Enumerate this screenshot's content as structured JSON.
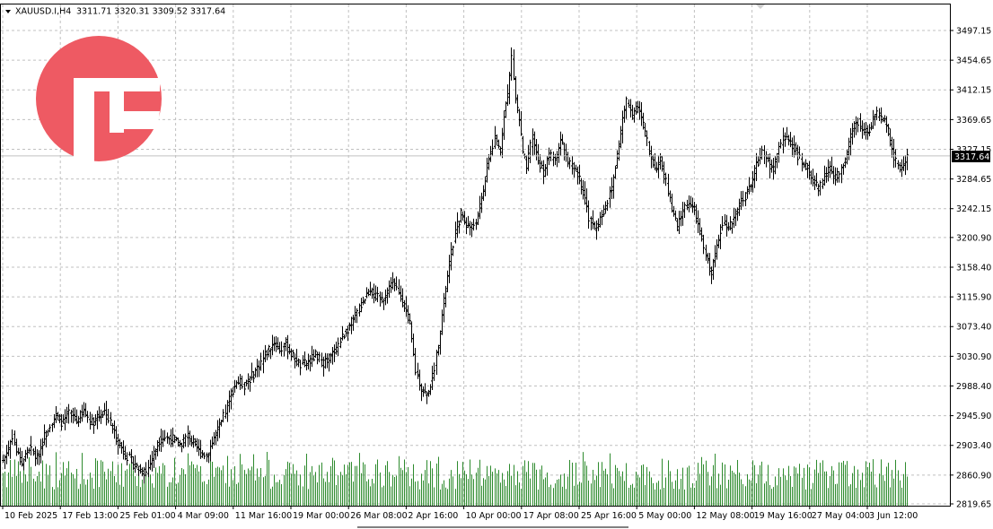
{
  "header": {
    "symbol": "XAUUSD.I,H4",
    "ohlc": "3311.71 3320.31 3309.52 3317.64"
  },
  "current_price_label": "3317.64",
  "logo": {
    "name": "broker-logo",
    "color": "#ee5a63"
  },
  "colors": {
    "bars": "#000000",
    "volume": "#2e8b2e",
    "grid": "#c0c0c0",
    "price_line": "#c0c0c0",
    "price_box": "#000000"
  },
  "chart_data": {
    "type": "bar",
    "title": "XAUUSD.I,H4",
    "xlabel": "",
    "ylabel": "",
    "ylim": [
      2819.65,
      3497.15
    ],
    "y_ticks": [
      "3497.15",
      "3454.65",
      "3412.15",
      "3369.65",
      "3327.15",
      "3284.65",
      "3242.15",
      "3200.90",
      "3158.40",
      "3115.90",
      "3073.40",
      "3030.90",
      "2988.40",
      "2945.90",
      "2903.40",
      "2860.90",
      "2819.65"
    ],
    "x_ticks": [
      "10 Feb 2025",
      "17 Feb 13:00",
      "25 Feb 01:00",
      "4 Mar 09:00",
      "11 Mar 16:00",
      "19 Mar 00:00",
      "26 Mar 08:00",
      "2 Apr 16:00",
      "10 Apr 00:00",
      "17 Apr 08:00",
      "25 Apr 16:00",
      "5 May 00:00",
      "12 May 08:00",
      "19 May 16:00",
      "27 May 04:00",
      "3 Jun 12:00"
    ],
    "grid": true,
    "current_price": 3317.64,
    "series": [
      {
        "name": "XAUUSD.I,H4",
        "kind": "ohlc_close_path",
        "points": [
          [
            0,
            2882
          ],
          [
            3,
            2900
          ],
          [
            5,
            2918
          ],
          [
            7,
            2895
          ],
          [
            10,
            2878
          ],
          [
            14,
            2900
          ],
          [
            18,
            2885
          ],
          [
            21,
            2910
          ],
          [
            25,
            2935
          ],
          [
            28,
            2945
          ],
          [
            32,
            2935
          ],
          [
            35,
            2950
          ],
          [
            39,
            2938
          ],
          [
            43,
            2952
          ],
          [
            47,
            2936
          ],
          [
            50,
            2944
          ],
          [
            54,
            2952
          ],
          [
            57,
            2935
          ],
          [
            60,
            2915
          ],
          [
            64,
            2895
          ],
          [
            68,
            2880
          ],
          [
            72,
            2870
          ],
          [
            76,
            2865
          ],
          [
            80,
            2892
          ],
          [
            83,
            2912
          ],
          [
            86,
            2915
          ],
          [
            90,
            2912
          ],
          [
            94,
            2905
          ],
          [
            98,
            2917
          ],
          [
            101,
            2906
          ],
          [
            104,
            2895
          ],
          [
            108,
            2890
          ],
          [
            112,
            2914
          ],
          [
            116,
            2935
          ],
          [
            118,
            2952
          ],
          [
            121,
            2978
          ],
          [
            124,
            2995
          ],
          [
            128,
            2990
          ],
          [
            132,
            3002
          ],
          [
            136,
            3018
          ],
          [
            140,
            3038
          ],
          [
            144,
            3052
          ],
          [
            147,
            3040
          ],
          [
            150,
            3048
          ],
          [
            154,
            3030
          ],
          [
            158,
            3018
          ],
          [
            162,
            3022
          ],
          [
            166,
            3032
          ],
          [
            170,
            3022
          ],
          [
            174,
            3030
          ],
          [
            178,
            3048
          ],
          [
            182,
            3068
          ],
          [
            186,
            3082
          ],
          [
            189,
            3100
          ],
          [
            192,
            3115
          ],
          [
            195,
            3128
          ],
          [
            198,
            3115
          ],
          [
            201,
            3112
          ],
          [
            204,
            3125
          ],
          [
            207,
            3138
          ],
          [
            210,
            3120
          ],
          [
            213,
            3105
          ],
          [
            216,
            3075
          ],
          [
            219,
            3010
          ],
          [
            222,
            2985
          ],
          [
            225,
            2975
          ],
          [
            228,
            3000
          ],
          [
            231,
            3050
          ],
          [
            234,
            3108
          ],
          [
            237,
            3162
          ],
          [
            240,
            3208
          ],
          [
            243,
            3235
          ],
          [
            246,
            3220
          ],
          [
            249,
            3215
          ],
          [
            252,
            3230
          ],
          [
            255,
            3270
          ],
          [
            258,
            3315
          ],
          [
            261,
            3340
          ],
          [
            264,
            3325
          ],
          [
            266,
            3380
          ],
          [
            268,
            3405
          ],
          [
            270,
            3460
          ],
          [
            272,
            3400
          ],
          [
            274,
            3370
          ],
          [
            276,
            3320
          ],
          [
            278,
            3300
          ],
          [
            281,
            3345
          ],
          [
            284,
            3310
          ],
          [
            287,
            3295
          ],
          [
            290,
            3318
          ],
          [
            293,
            3312
          ],
          [
            296,
            3340
          ],
          [
            299,
            3315
          ],
          [
            302,
            3300
          ],
          [
            305,
            3290
          ],
          [
            308,
            3268
          ],
          [
            311,
            3230
          ],
          [
            314,
            3212
          ],
          [
            317,
            3228
          ],
          [
            320,
            3245
          ],
          [
            323,
            3272
          ],
          [
            326,
            3318
          ],
          [
            329,
            3370
          ],
          [
            331,
            3395
          ],
          [
            334,
            3378
          ],
          [
            337,
            3390
          ],
          [
            340,
            3362
          ],
          [
            343,
            3325
          ],
          [
            346,
            3300
          ],
          [
            349,
            3310
          ],
          [
            352,
            3280
          ],
          [
            355,
            3240
          ],
          [
            358,
            3215
          ],
          [
            361,
            3240
          ],
          [
            364,
            3252
          ],
          [
            367,
            3238
          ],
          [
            370,
            3208
          ],
          [
            373,
            3175
          ],
          [
            376,
            3150
          ],
          [
            379,
            3190
          ],
          [
            382,
            3225
          ],
          [
            385,
            3210
          ],
          [
            388,
            3232
          ],
          [
            391,
            3248
          ],
          [
            394,
            3262
          ],
          [
            397,
            3275
          ],
          [
            400,
            3306
          ],
          [
            403,
            3322
          ],
          [
            406,
            3308
          ],
          [
            409,
            3300
          ],
          [
            412,
            3330
          ],
          [
            415,
            3345
          ],
          [
            418,
            3338
          ],
          [
            421,
            3325
          ],
          [
            424,
            3306
          ],
          [
            427,
            3298
          ],
          [
            430,
            3285
          ],
          [
            433,
            3268
          ],
          [
            436,
            3290
          ],
          [
            439,
            3300
          ],
          [
            442,
            3285
          ],
          [
            445,
            3300
          ],
          [
            448,
            3320
          ],
          [
            451,
            3355
          ],
          [
            454,
            3368
          ],
          [
            457,
            3350
          ],
          [
            460,
            3355
          ],
          [
            463,
            3378
          ],
          [
            466,
            3370
          ],
          [
            469,
            3365
          ],
          [
            471,
            3340
          ],
          [
            474,
            3308
          ],
          [
            477,
            3300
          ],
          [
            480,
            3317
          ]
        ]
      },
      {
        "name": "Volume",
        "kind": "volume_pattern"
      }
    ]
  }
}
